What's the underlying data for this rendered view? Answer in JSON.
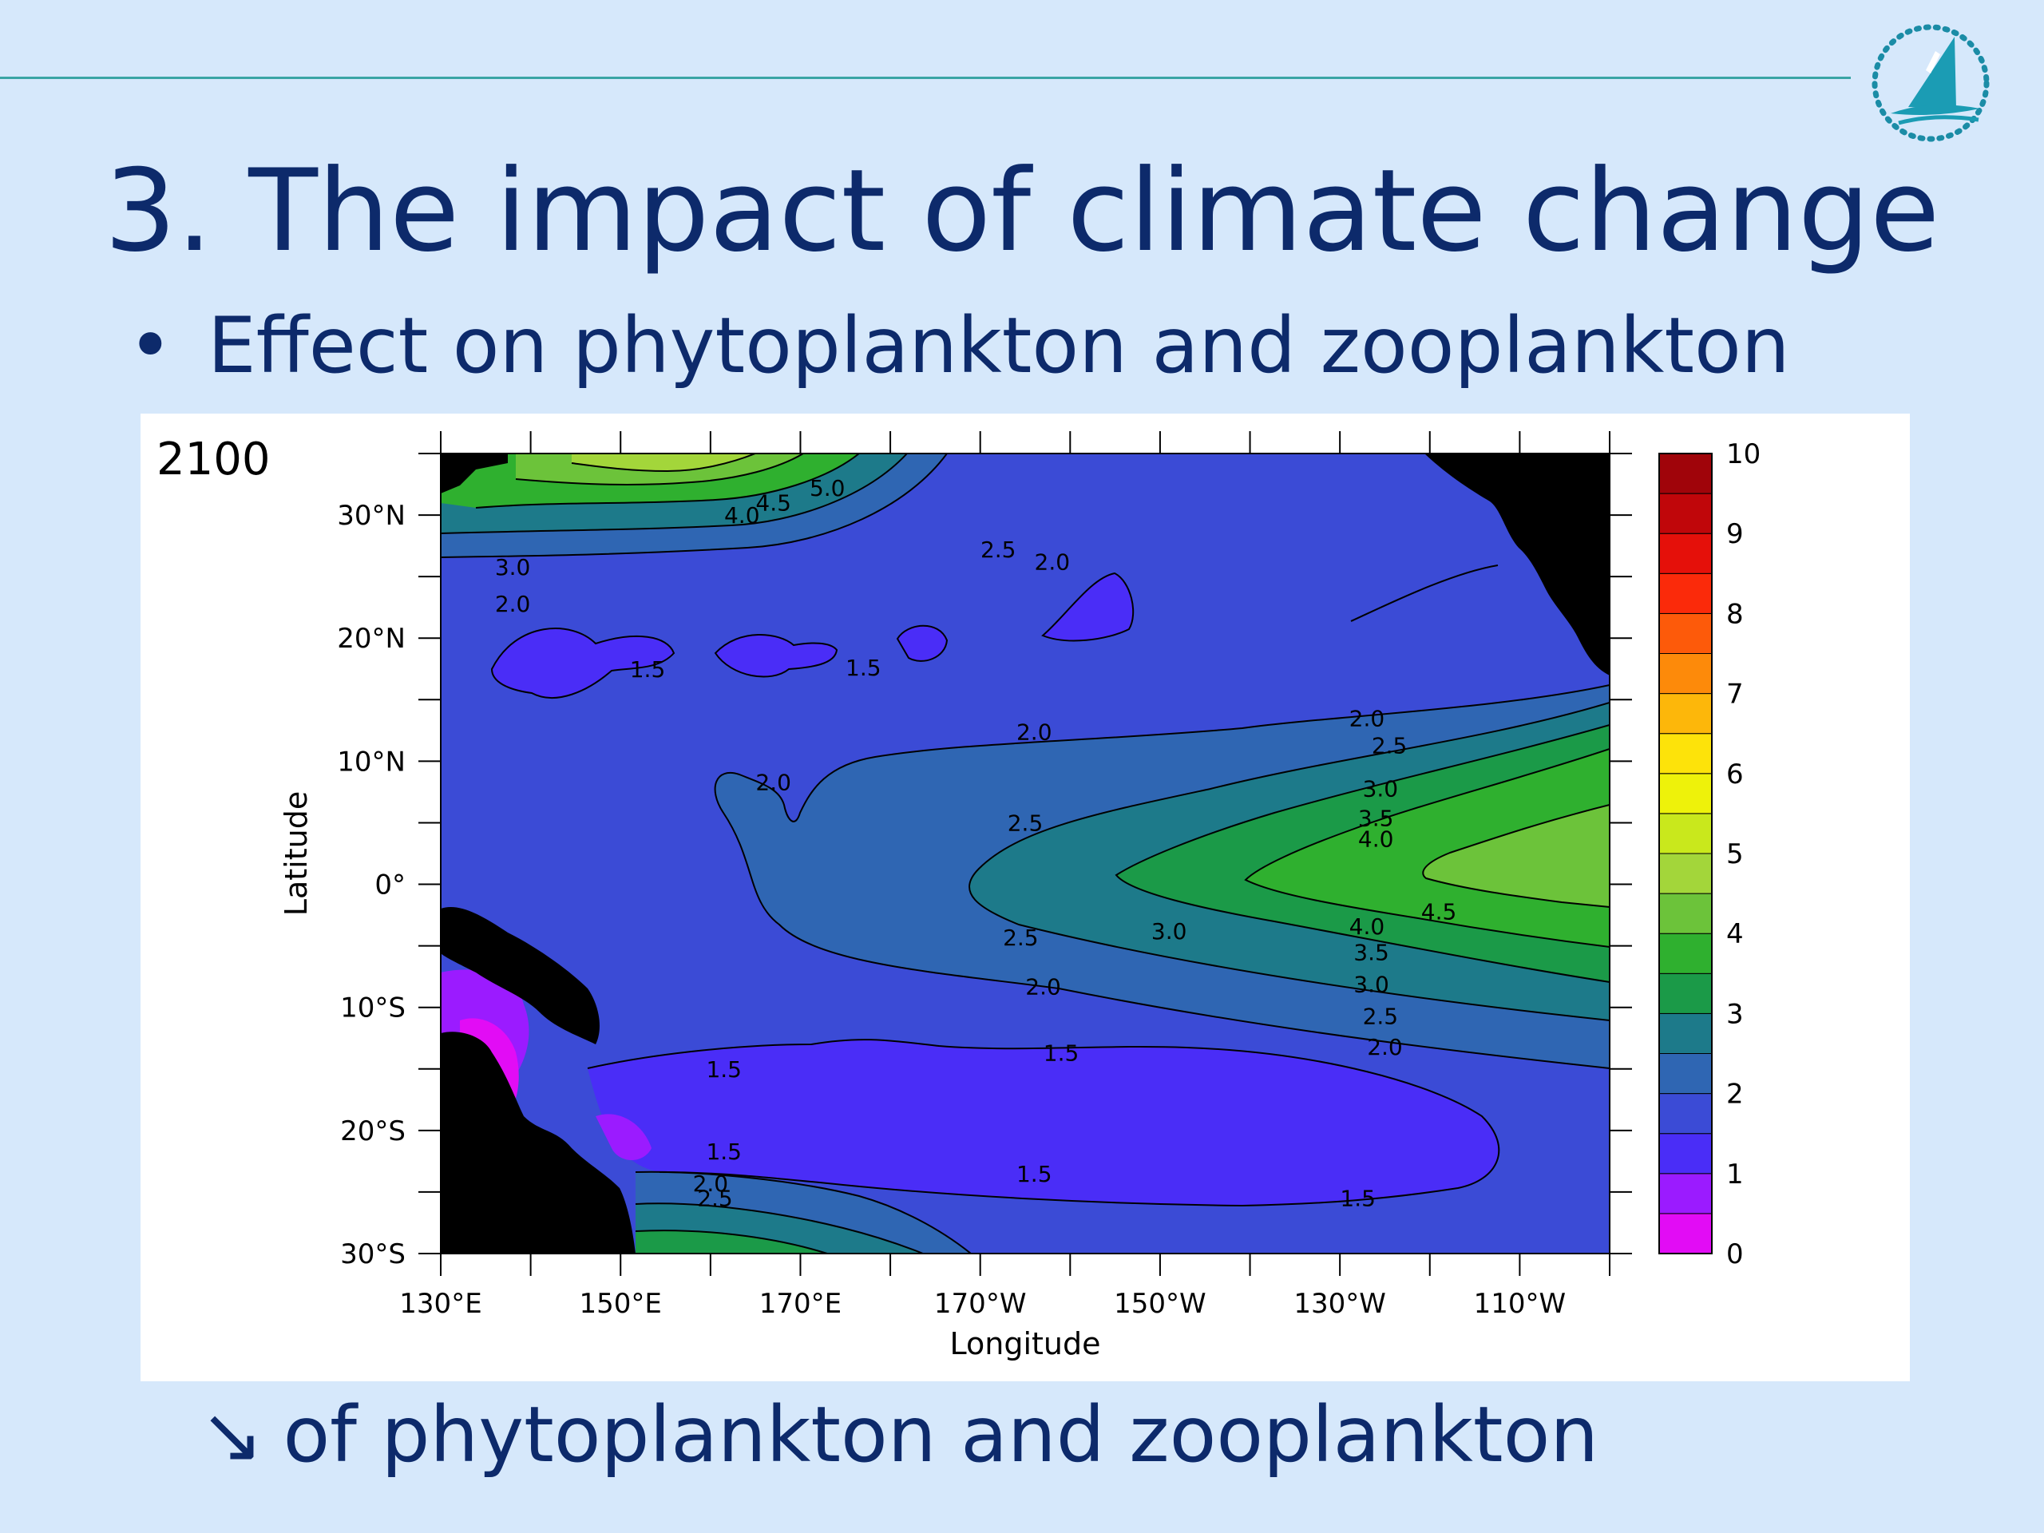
{
  "slide": {
    "title": "3. The impact of climate change",
    "bullet_symbol": "•",
    "bullet_text": "Effect on phytoplankton and zooplankton",
    "footer_arrow": "↘",
    "footer_text": "of phytoplankton and zooplankton"
  },
  "colors": {
    "background": "#d6e8fb",
    "title_text": "#0d2a6b",
    "rule": "#3aa5a5",
    "land": "#000000"
  },
  "icons": {
    "logo": "sail-boat-logo-icon"
  },
  "chart_data": {
    "type": "heatmap",
    "subtype": "filled-contour-map",
    "panel_label": "2100",
    "xlabel": "Longitude",
    "ylabel": "Latitude",
    "xlim": [
      130,
      260
    ],
    "ylim": [
      -30,
      35
    ],
    "x_ticks": [
      {
        "value": 130,
        "label": "130°E"
      },
      {
        "value": 150,
        "label": "150°E"
      },
      {
        "value": 170,
        "label": "170°E"
      },
      {
        "value": 190,
        "label": "170°W"
      },
      {
        "value": 210,
        "label": "150°W"
      },
      {
        "value": 230,
        "label": "130°W"
      },
      {
        "value": 250,
        "label": "110°W"
      }
    ],
    "y_ticks": [
      {
        "value": 30,
        "label": "30°N"
      },
      {
        "value": 20,
        "label": "20°N"
      },
      {
        "value": 10,
        "label": "10°N"
      },
      {
        "value": 0,
        "label": "0°"
      },
      {
        "value": -10,
        "label": "10°S"
      },
      {
        "value": -20,
        "label": "20°S"
      },
      {
        "value": -30,
        "label": "30°S"
      }
    ],
    "colorbar": {
      "min": 0,
      "max": 10,
      "tick_labels": [
        "0",
        "1",
        "2",
        "3",
        "4",
        "5",
        "6",
        "7",
        "8",
        "9",
        "10"
      ],
      "colors": [
        "#e20cf5",
        "#9b1bff",
        "#4a2df7",
        "#3b4bd6",
        "#2f66b3",
        "#1d7a8a",
        "#1b9a48",
        "#2fb02f",
        "#6cc33a",
        "#a3d63a",
        "#c9e81c",
        "#eef20a",
        "#fde30a",
        "#fdb70a",
        "#fd8a0a",
        "#fd5a0a",
        "#fb2a0a",
        "#e5100a",
        "#c0060a",
        "#a0040a"
      ]
    },
    "contour_labels": [
      {
        "text": "5.0",
        "lon": 173,
        "lat": 32.2
      },
      {
        "text": "4.5",
        "lon": 167,
        "lat": 31.0
      },
      {
        "text": "4.0",
        "lon": 163.5,
        "lat": 30.0
      },
      {
        "text": "3.0",
        "lon": 138,
        "lat": 25.8
      },
      {
        "text": "2.0",
        "lon": 138,
        "lat": 22.8
      },
      {
        "text": "2.5",
        "lon": 192,
        "lat": 27.2
      },
      {
        "text": "2.0",
        "lon": 198,
        "lat": 26.2
      },
      {
        "text": "1.5",
        "lon": 153,
        "lat": 17.5
      },
      {
        "text": "1.5",
        "lon": 177,
        "lat": 17.6
      },
      {
        "text": "2.0",
        "lon": 196,
        "lat": 12.4
      },
      {
        "text": "2.0",
        "lon": 233,
        "lat": 13.5
      },
      {
        "text": "2.0",
        "lon": 167,
        "lat": 8.3
      },
      {
        "text": "2.5",
        "lon": 235.5,
        "lat": 11.3
      },
      {
        "text": "3.0",
        "lon": 234.5,
        "lat": 7.8
      },
      {
        "text": "3.5",
        "lon": 234,
        "lat": 5.4
      },
      {
        "text": "4.0",
        "lon": 234,
        "lat": 3.7
      },
      {
        "text": "2.5",
        "lon": 195,
        "lat": 5.0
      },
      {
        "text": "4.5",
        "lon": 241,
        "lat": -2.2
      },
      {
        "text": "4.0",
        "lon": 233,
        "lat": -3.4
      },
      {
        "text": "3.5",
        "lon": 233.5,
        "lat": -5.5
      },
      {
        "text": "3.0",
        "lon": 233.5,
        "lat": -8.1
      },
      {
        "text": "2.5",
        "lon": 234.5,
        "lat": -10.7
      },
      {
        "text": "2.0",
        "lon": 235,
        "lat": -13.2
      },
      {
        "text": "2.5",
        "lon": 194.5,
        "lat": -4.3
      },
      {
        "text": "3.0",
        "lon": 211,
        "lat": -3.8
      },
      {
        "text": "2.0",
        "lon": 197,
        "lat": -8.3
      },
      {
        "text": "1.5",
        "lon": 199,
        "lat": -13.7
      },
      {
        "text": "1.5",
        "lon": 161.5,
        "lat": -15.0
      },
      {
        "text": "1.5",
        "lon": 161.5,
        "lat": -21.7
      },
      {
        "text": "2.0",
        "lon": 160,
        "lat": -24.3
      },
      {
        "text": "2.5",
        "lon": 160.5,
        "lat": -25.5
      },
      {
        "text": "1.5",
        "lon": 196,
        "lat": -23.5
      },
      {
        "text": "1.5",
        "lon": 232,
        "lat": -25.5
      }
    ]
  }
}
